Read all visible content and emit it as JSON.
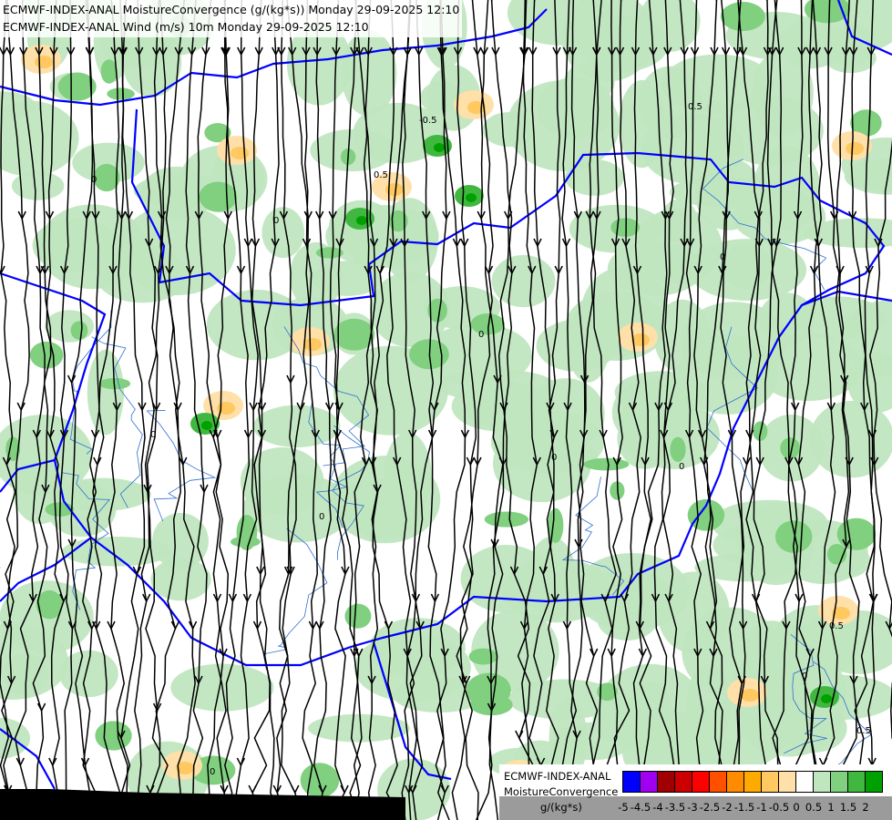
{
  "titles": {
    "line1": "ECMWF-INDEX-ANAL MoistureConvergence (g/(kg*s)) Monday 29-09-2025 12:10",
    "line2": "ECMWF-INDEX-ANAL Wind (m/s) 10m Monday 29-09-2025 12:10"
  },
  "map": {
    "contour_labels": [
      "0",
      "0.5",
      "-0.5"
    ],
    "border_color": "#0000ff",
    "river_color": "#3070d0",
    "streamline_color": "#000000"
  },
  "legend": {
    "line1": "ECMWF-INDEX-ANAL",
    "line2": "MoistureConvergence",
    "unit": "g/(kg*s)",
    "colors": [
      "#0000ff",
      "#a000f0",
      "#a00000",
      "#cc0000",
      "#ff0000",
      "#ff5000",
      "#ff8c00",
      "#ffaa00",
      "#ffc860",
      "#ffe0a8",
      "#ffffff",
      "#c0e6c0",
      "#80d080",
      "#40b840",
      "#00a000"
    ],
    "ticks": [
      "-5",
      "-4.5",
      "-4",
      "-3.5",
      "-3",
      "-2.5",
      "-2",
      "-1.5",
      "-1",
      "-0.5",
      "0",
      "0.5",
      "1",
      "1.5",
      "2",
      " "
    ]
  }
}
